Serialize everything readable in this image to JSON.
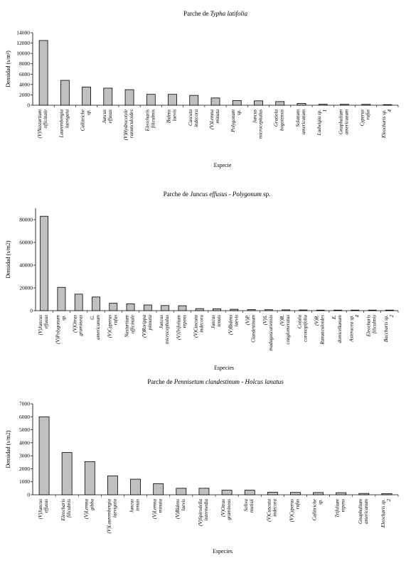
{
  "chart_data": [
    {
      "type": "bar",
      "title_prefix": "Parche de ",
      "title_italic": "Typha latifolia",
      "title_suffix": "",
      "ylabel": "Densidad (s/m²)",
      "xlabel": "Especie",
      "ylim": [
        0,
        14000
      ],
      "yticks": [
        0,
        2000,
        4000,
        6000,
        8000,
        10000,
        12000,
        14000
      ],
      "grid": false,
      "categories": [
        "(V)Nasturtium officinale",
        "Laurembergia laevigata",
        "Callitriche sp.",
        "Juncus effusus",
        "(V)Hydrocotyle ranunculoides",
        "Eleocharis filiculmis",
        "Bidens laevis",
        "Cuscuta indecora",
        "(V)Lemna minuta",
        "Polygonum sp.",
        "Juncus microcephalus",
        "Gratiola bogotensis",
        "Solanum americanum",
        "Ludwigia sp. 1",
        "Gnaphalium americanum",
        "Cyperus rufus",
        "Eleocharis sp. 4"
      ],
      "values": [
        12500,
        4800,
        3500,
        3300,
        3000,
        2100,
        2100,
        1900,
        1400,
        900,
        850,
        700,
        350,
        180,
        170,
        160,
        100
      ]
    },
    {
      "type": "bar",
      "title_prefix": "Parche de ",
      "title_italic": "Juncus effusus - Polygonum",
      "title_suffix": " sp.",
      "ylabel": "Densidad (s/m2)",
      "xlabel": "Especies",
      "ylim": [
        0,
        90000
      ],
      "yticks": [
        0,
        20000,
        40000,
        60000,
        80000
      ],
      "grid": false,
      "categories": [
        "(V)Juncus effusus",
        "(V)Polygonum sp.",
        "(V)Otras gramineas",
        "G. americanum",
        "(V)Cyperus rufus",
        "Nasturtium officinale",
        "(V)Rorippa pinnata",
        "Juncus microcephalus",
        "(V)Trifolium repens",
        "(V)Cuscuta indecora",
        "Juncus tenuis",
        "(V)Bidens laevis",
        "(V)P. Clandestinum",
        "(V)S. madagascariensis",
        "(V)R. conglomeratus",
        "Cotula coronopifolia",
        "(V)R. Ranunculoides",
        "E. domicellanum",
        "Asteracea sp. 4",
        "Eleocharis filiculmis",
        "Baccharis sp. 2"
      ],
      "values": [
        83000,
        20500,
        14500,
        12000,
        6500,
        6000,
        5000,
        4500,
        4300,
        1800,
        1600,
        1200,
        900,
        800,
        700,
        600,
        400,
        300,
        100,
        80,
        50
      ]
    },
    {
      "type": "bar",
      "title_prefix": "Parche de ",
      "title_italic": "Pennisetum clandestinum - Holcus lanatus",
      "title_suffix": "",
      "ylabel": "Densidad (s/m2)",
      "xlabel": "Especies",
      "ylim": [
        0,
        7000
      ],
      "yticks": [
        0,
        1000,
        2000,
        3000,
        4000,
        5000,
        6000,
        7000
      ],
      "grid": false,
      "categories": [
        "(V)Juncus effusus",
        "Eleocharis filiculmis",
        "(V)Lemna gibba",
        "(V)Laurembergia laevigata",
        "Juncus tenuis",
        "(V)Lemna minuta",
        "(V)Bidens laevis",
        "(V)Spirodella intermedia",
        "(V)Otras gramineas",
        "Soliva mutisii",
        "(V)Cuscuta indecora",
        "(V)Cyperus rufus",
        "Callitriche sp.",
        "Trifolium repens",
        "Gnaphalium americanum",
        "Eleocharis sp. 2"
      ],
      "values": [
        6000,
        3250,
        2550,
        1450,
        1200,
        850,
        500,
        500,
        350,
        350,
        200,
        180,
        170,
        160,
        100,
        90
      ]
    }
  ]
}
